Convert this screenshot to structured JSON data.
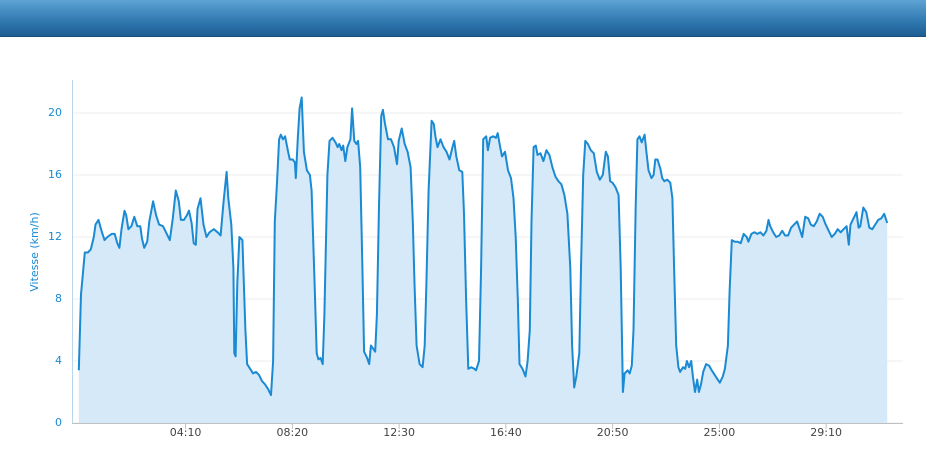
{
  "chart_data": {
    "type": "area",
    "ylabel": "Vitesse (km/h)",
    "color": "#1a8ad2",
    "fill": "#d5e9f9",
    "grid": true,
    "ylim": [
      0,
      22
    ],
    "yticks": [
      0,
      4,
      8,
      12,
      16,
      20
    ],
    "xlim": [
      -16,
      1930
    ],
    "xticks": [
      {
        "value": 250,
        "label": "04:10"
      },
      {
        "value": 500,
        "label": "08:20"
      },
      {
        "value": 750,
        "label": "12:30"
      },
      {
        "value": 1000,
        "label": "16:40"
      },
      {
        "value": 1250,
        "label": "20:50"
      },
      {
        "value": 1500,
        "label": "25:00"
      },
      {
        "value": 1750,
        "label": "29:10"
      }
    ],
    "x": [
      0,
      5,
      9,
      14,
      21,
      28,
      35,
      39,
      46,
      53,
      60,
      67,
      77,
      84,
      90,
      95,
      100,
      107,
      111,
      116,
      123,
      130,
      137,
      144,
      148,
      153,
      160,
      165,
      174,
      181,
      188,
      197,
      206,
      213,
      220,
      227,
      234,
      239,
      246,
      253,
      258,
      264,
      269,
      274,
      278,
      285,
      292,
      299,
      306,
      316,
      325,
      332,
      339,
      346,
      350,
      357,
      362,
      364,
      367,
      371,
      376,
      383,
      390,
      394,
      401,
      408,
      415,
      422,
      429,
      436,
      443,
      450,
      455,
      459,
      464,
      469,
      473,
      478,
      483,
      490,
      494,
      501,
      506,
      508,
      513,
      517,
      522,
      527,
      534,
      541,
      545,
      552,
      557,
      561,
      566,
      571,
      575,
      582,
      587,
      594,
      601,
      606,
      610,
      615,
      619,
      624,
      629,
      636,
      640,
      645,
      650,
      654,
      659,
      664,
      668,
      675,
      680,
      684,
      689,
      694,
      698,
      703,
      708,
      712,
      717,
      724,
      731,
      738,
      745,
      749,
      756,
      763,
      770,
      777,
      782,
      786,
      791,
      798,
      805,
      810,
      814,
      819,
      826,
      831,
      835,
      840,
      847,
      854,
      861,
      868,
      875,
      879,
      884,
      891,
      898,
      902,
      907,
      912,
      919,
      926,
      930,
      937,
      942,
      947,
      954,
      958,
      963,
      970,
      977,
      981,
      986,
      991,
      998,
      1005,
      1012,
      1018,
      1023,
      1028,
      1032,
      1039,
      1046,
      1051,
      1056,
      1060,
      1065,
      1070,
      1074,
      1081,
      1088,
      1095,
      1102,
      1109,
      1116,
      1123,
      1130,
      1137,
      1144,
      1151,
      1155,
      1160,
      1165,
      1172,
      1176,
      1181,
      1186,
      1192,
      1199,
      1206,
      1213,
      1220,
      1227,
      1234,
      1239,
      1244,
      1250,
      1257,
      1264,
      1269,
      1274,
      1278,
      1285,
      1290,
      1295,
      1299,
      1304,
      1308,
      1313,
      1318,
      1325,
      1329,
      1334,
      1341,
      1346,
      1350,
      1355,
      1362,
      1366,
      1371,
      1378,
      1385,
      1390,
      1394,
      1399,
      1404,
      1408,
      1415,
      1420,
      1424,
      1429,
      1434,
      1438,
      1443,
      1448,
      1452,
      1457,
      1462,
      1469,
      1476,
      1482,
      1489,
      1496,
      1501,
      1508,
      1513,
      1520,
      1524,
      1529,
      1536,
      1543,
      1550,
      1557,
      1564,
      1568,
      1575,
      1582,
      1589,
      1596,
      1603,
      1610,
      1615,
      1619,
      1626,
      1633,
      1640,
      1647,
      1654,
      1661,
      1668,
      1675,
      1682,
      1687,
      1694,
      1701,
      1708,
      1714,
      1721,
      1728,
      1735,
      1742,
      1749,
      1756,
      1763,
      1770,
      1777,
      1784,
      1791,
      1798,
      1803,
      1807,
      1814,
      1821,
      1826,
      1830,
      1837,
      1844,
      1851,
      1858,
      1865,
      1872,
      1879,
      1886,
      1893
    ],
    "values": [
      3.4,
      8.3,
      9.5,
      11,
      11,
      11.2,
      12,
      12.8,
      13.1,
      12.4,
      11.8,
      12,
      12.2,
      12.2,
      11.6,
      11.3,
      12.5,
      13.7,
      13.4,
      12.5,
      12.7,
      13.3,
      12.7,
      12.7,
      11.9,
      11.3,
      11.7,
      13,
      14.3,
      13.4,
      12.8,
      12.7,
      12.2,
      11.8,
      13.2,
      15,
      14.3,
      13.1,
      13.1,
      13.4,
      13.7,
      12.9,
      11.6,
      11.5,
      13.8,
      14.5,
      12.8,
      12,
      12.3,
      12.5,
      12.3,
      12.1,
      14.3,
      16.2,
      14.5,
      12.8,
      10,
      4.5,
      4.3,
      9,
      12,
      11.8,
      6,
      3.8,
      3.5,
      3.2,
      3.3,
      3.1,
      2.7,
      2.5,
      2.2,
      1.8,
      4,
      13,
      15.5,
      18.3,
      18.6,
      18.3,
      18.5,
      17.5,
      17,
      17,
      16.8,
      15.8,
      18.5,
      20.3,
      21,
      17.5,
      16.3,
      16,
      15,
      9,
      4.5,
      4.1,
      4.2,
      3.8,
      7,
      16,
      18.2,
      18.4,
      18.1,
      17.8,
      18,
      17.6,
      17.9,
      16.9,
      17.8,
      18.3,
      20.3,
      18.2,
      18,
      18.2,
      16.5,
      10,
      4.6,
      4.2,
      3.8,
      5,
      4.8,
      4.6,
      7,
      14,
      19.8,
      20.2,
      19.3,
      18.3,
      18.3,
      17.8,
      16.7,
      18.2,
      19,
      18,
      17.5,
      16.5,
      13,
      9,
      5,
      3.8,
      3.6,
      5,
      9,
      15,
      19.5,
      19.3,
      18.5,
      17.8,
      18.3,
      17.8,
      17.5,
      17,
      17.8,
      18.2,
      17.2,
      16.3,
      16.2,
      13.5,
      8,
      3.5,
      3.6,
      3.5,
      3.4,
      4,
      10,
      18.3,
      18.5,
      17.6,
      18.4,
      18.5,
      18.4,
      18.7,
      17.9,
      17.2,
      17.5,
      16.3,
      15.8,
      14.5,
      12,
      8,
      3.8,
      3.5,
      3,
      4,
      6,
      13,
      17.8,
      17.9,
      17.3,
      17.4,
      16.9,
      17.6,
      17.3,
      16.5,
      15.9,
      15.6,
      15.4,
      14.7,
      13.5,
      10,
      5,
      2.3,
      3,
      4.5,
      10,
      16,
      18.2,
      18,
      17.6,
      17.4,
      16.2,
      15.7,
      16,
      17.5,
      17.2,
      15.6,
      15.5,
      15.2,
      14.7,
      10,
      2,
      3.2,
      3.4,
      3.2,
      3.7,
      6,
      14,
      18.3,
      18.5,
      18.1,
      18.6,
      17.5,
      16.3,
      15.8,
      16,
      17,
      17,
      16.4,
      15.8,
      15.6,
      15.7,
      15.5,
      14.5,
      10,
      5,
      3.6,
      3.3,
      3.6,
      3.5,
      4,
      3.6,
      4,
      3,
      2,
      2.8,
      2,
      2.5,
      3.3,
      3.8,
      3.7,
      3.4,
      3.1,
      2.8,
      2.6,
      3,
      3.5,
      5,
      8.5,
      11.8,
      11.7,
      11.7,
      11.6,
      12.2,
      12,
      11.7,
      12.2,
      12.3,
      12.2,
      12.3,
      12.1,
      12.4,
      13.1,
      12.7,
      12.3,
      12,
      12.1,
      12.4,
      12.1,
      12.1,
      12.6,
      12.8,
      13,
      12.6,
      12,
      13.3,
      13.2,
      12.8,
      12.7,
      13,
      13.5,
      13.3,
      12.8,
      12.4,
      12,
      12.2,
      12.5,
      12.3,
      12.5,
      12.7,
      11.5,
      12.8,
      13.2,
      13.6,
      12.6,
      12.7,
      13.9,
      13.6,
      12.6,
      12.5,
      12.8,
      13.1,
      13.2,
      13.5,
      12.9
    ]
  }
}
